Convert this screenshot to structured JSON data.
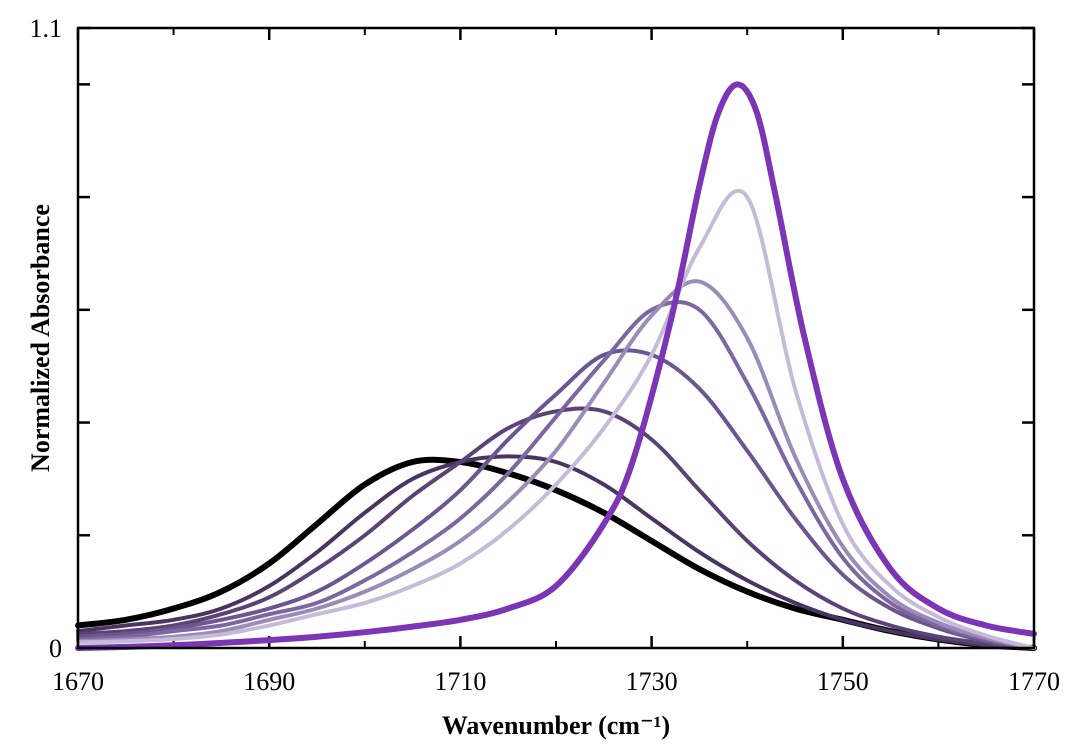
{
  "chart_data": {
    "type": "line",
    "title": "",
    "xlabel": "Wavenumber (cm⁻¹)",
    "ylabel": "Normalized Absorbance",
    "xlim": [
      1670,
      1770
    ],
    "ylim": [
      0,
      1.1
    ],
    "x_ticks": [
      1670,
      1690,
      1710,
      1730,
      1750,
      1770
    ],
    "x_tick_labels": [
      "1670",
      "1690",
      "1710",
      "1730",
      "1750",
      "1770"
    ],
    "y_major_ticks": [
      0,
      0.2,
      0.4,
      0.6,
      0.8,
      1.0,
      1.1
    ],
    "y_tick_labels": [
      "0",
      "",
      "",
      "",
      "",
      "",
      "1.1"
    ],
    "grid": false,
    "legend": "none",
    "series": [
      {
        "color": "#000000",
        "width": 6,
        "x": [
          1670,
          1675,
          1680,
          1685,
          1690,
          1695,
          1700,
          1705,
          1710,
          1715,
          1720,
          1725,
          1730,
          1735,
          1740,
          1745,
          1750,
          1755,
          1760,
          1765,
          1770
        ],
        "y": [
          0.04,
          0.05,
          0.07,
          0.1,
          0.15,
          0.22,
          0.29,
          0.33,
          0.33,
          0.31,
          0.28,
          0.24,
          0.19,
          0.14,
          0.1,
          0.07,
          0.05,
          0.03,
          0.015,
          0.005,
          0.0
        ]
      },
      {
        "color": "#4a3560",
        "width": 4,
        "x": [
          1670,
          1675,
          1680,
          1685,
          1690,
          1695,
          1700,
          1705,
          1710,
          1715,
          1720,
          1725,
          1730,
          1735,
          1740,
          1745,
          1750,
          1755,
          1760,
          1765,
          1770
        ],
        "y": [
          0.03,
          0.04,
          0.05,
          0.07,
          0.11,
          0.17,
          0.24,
          0.3,
          0.33,
          0.34,
          0.33,
          0.29,
          0.23,
          0.17,
          0.12,
          0.08,
          0.05,
          0.03,
          0.015,
          0.005,
          0.0
        ]
      },
      {
        "color": "#5b4375",
        "width": 4,
        "x": [
          1670,
          1675,
          1680,
          1685,
          1690,
          1695,
          1700,
          1705,
          1710,
          1715,
          1720,
          1725,
          1730,
          1735,
          1740,
          1745,
          1750,
          1755,
          1760,
          1765,
          1770
        ],
        "y": [
          0.025,
          0.03,
          0.04,
          0.06,
          0.09,
          0.14,
          0.2,
          0.27,
          0.33,
          0.39,
          0.42,
          0.42,
          0.37,
          0.28,
          0.19,
          0.12,
          0.07,
          0.04,
          0.02,
          0.008,
          0.0
        ]
      },
      {
        "color": "#6d5590",
        "width": 4,
        "x": [
          1670,
          1675,
          1680,
          1685,
          1690,
          1695,
          1700,
          1705,
          1710,
          1715,
          1720,
          1725,
          1730,
          1735,
          1740,
          1745,
          1750,
          1755,
          1760,
          1765,
          1770
        ],
        "y": [
          0.02,
          0.025,
          0.035,
          0.05,
          0.07,
          0.1,
          0.15,
          0.21,
          0.28,
          0.37,
          0.45,
          0.52,
          0.52,
          0.46,
          0.35,
          0.23,
          0.13,
          0.07,
          0.035,
          0.012,
          0.0
        ]
      },
      {
        "color": "#7d67a0",
        "width": 4,
        "x": [
          1670,
          1675,
          1680,
          1685,
          1690,
          1695,
          1700,
          1705,
          1710,
          1715,
          1720,
          1725,
          1730,
          1735,
          1740,
          1745,
          1750,
          1755,
          1760,
          1765,
          1770
        ],
        "y": [
          0.015,
          0.02,
          0.03,
          0.04,
          0.06,
          0.08,
          0.12,
          0.17,
          0.23,
          0.31,
          0.41,
          0.51,
          0.6,
          0.6,
          0.47,
          0.3,
          0.16,
          0.08,
          0.04,
          0.015,
          0.0
        ]
      },
      {
        "color": "#9b8bb8",
        "width": 4,
        "x": [
          1670,
          1675,
          1680,
          1685,
          1690,
          1695,
          1700,
          1705,
          1710,
          1715,
          1720,
          1725,
          1730,
          1735,
          1740,
          1745,
          1750,
          1755,
          1760,
          1765,
          1770
        ],
        "y": [
          0.012,
          0.015,
          0.02,
          0.03,
          0.05,
          0.07,
          0.1,
          0.14,
          0.19,
          0.26,
          0.35,
          0.47,
          0.59,
          0.65,
          0.55,
          0.34,
          0.18,
          0.09,
          0.045,
          0.018,
          0.0
        ]
      },
      {
        "color": "#c5bbd9",
        "width": 4,
        "x": [
          1670,
          1675,
          1680,
          1685,
          1690,
          1695,
          1700,
          1705,
          1710,
          1715,
          1720,
          1725,
          1730,
          1735,
          1740,
          1745,
          1750,
          1755,
          1760,
          1765,
          1770
        ],
        "y": [
          0.01,
          0.012,
          0.016,
          0.024,
          0.04,
          0.06,
          0.08,
          0.11,
          0.15,
          0.21,
          0.29,
          0.39,
          0.52,
          0.71,
          0.8,
          0.46,
          0.22,
          0.11,
          0.055,
          0.022,
          0.0
        ]
      },
      {
        "color": "#7b35b5",
        "width": 6,
        "x": [
          1670,
          1675,
          1680,
          1685,
          1690,
          1695,
          1700,
          1705,
          1710,
          1715,
          1720,
          1725,
          1728,
          1732,
          1735,
          1737,
          1739,
          1741,
          1743,
          1746,
          1750,
          1755,
          1760,
          1765,
          1770
        ],
        "y": [
          0.0,
          0.002,
          0.005,
          0.009,
          0.014,
          0.02,
          0.028,
          0.038,
          0.05,
          0.07,
          0.11,
          0.22,
          0.33,
          0.58,
          0.82,
          0.95,
          1.0,
          0.95,
          0.8,
          0.55,
          0.3,
          0.14,
          0.07,
          0.04,
          0.025
        ]
      }
    ]
  }
}
